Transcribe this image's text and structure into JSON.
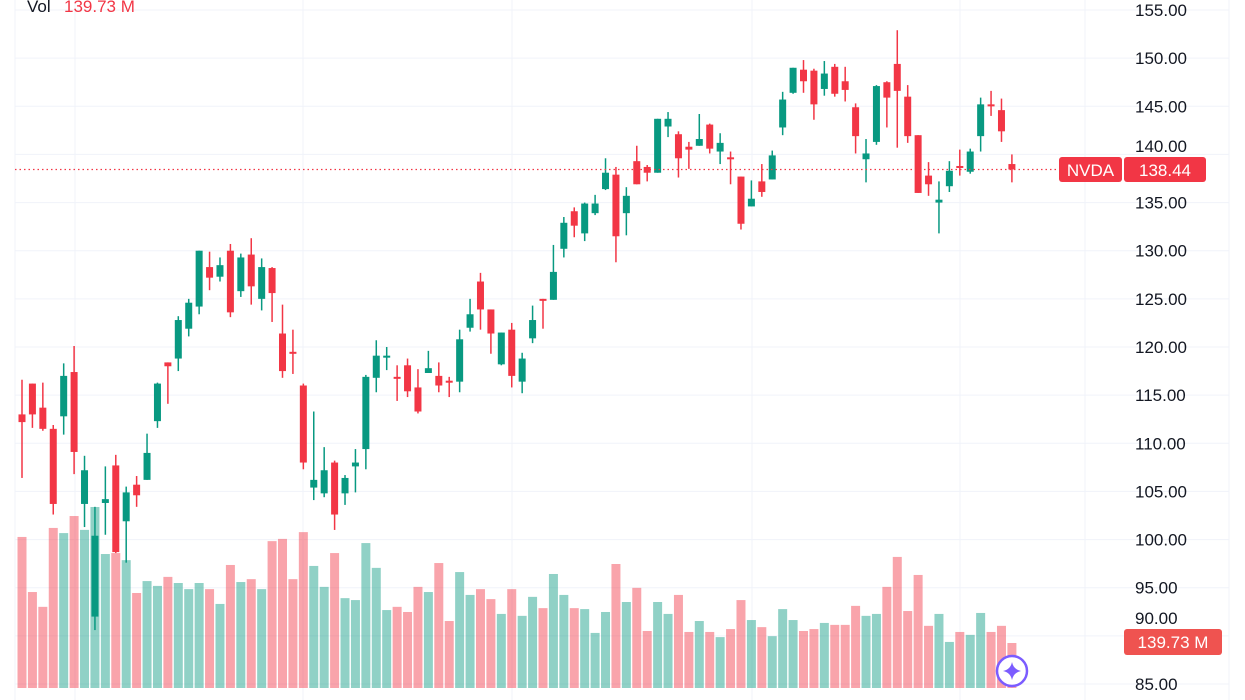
{
  "legend": {
    "vol_label": "Vol",
    "vol_value": "139.73 M"
  },
  "price_tag": {
    "symbol": "NVDA",
    "price": "138.44"
  },
  "volume_tag": "139.73 M",
  "assistant_icon": "sparkle-icon",
  "colors": {
    "up": "#089981",
    "down": "#f23645",
    "accent": "#7b5cff"
  },
  "chart_data": {
    "type": "candlestick",
    "symbol": "NVDA",
    "last_price": 138.44,
    "last_volume_millions": 139.73,
    "ylim": [
      85,
      155
    ],
    "y_ticks": [
      "155.00",
      "150.00",
      "145.00",
      "140.00",
      "135.00",
      "130.00",
      "125.00",
      "120.00",
      "115.00",
      "110.00",
      "105.00",
      "100.00",
      "95.00",
      "90.00",
      "85.00"
    ],
    "grid": true,
    "ohlc_fields": [
      "open",
      "high",
      "low",
      "close"
    ],
    "ohlc": [
      [
        113.0,
        116.6,
        106.4,
        112.2
      ],
      [
        116.2,
        116.2,
        111.6,
        113.0
      ],
      [
        113.7,
        116.3,
        111.3,
        111.5
      ],
      [
        111.5,
        111.9,
        102.6,
        103.7
      ],
      [
        112.8,
        118.3,
        110.9,
        117.0
      ],
      [
        117.4,
        120.1,
        106.8,
        109.1
      ],
      [
        103.7,
        108.7,
        101.3,
        107.2
      ],
      [
        92.0,
        103.4,
        90.6,
        100.4
      ],
      [
        103.8,
        107.6,
        100.5,
        104.2
      ],
      [
        107.7,
        108.8,
        98.6,
        98.7
      ],
      [
        101.9,
        105.5,
        97.6,
        104.9
      ],
      [
        105.7,
        106.6,
        103.4,
        104.6
      ],
      [
        106.2,
        111.0,
        106.2,
        109.0
      ],
      [
        112.3,
        116.3,
        111.6,
        116.2
      ],
      [
        118.4,
        118.4,
        114.1,
        118.0
      ],
      [
        118.8,
        123.2,
        117.5,
        122.8
      ],
      [
        121.9,
        125.0,
        121.1,
        124.6
      ],
      [
        124.2,
        130.0,
        123.4,
        130.0
      ],
      [
        128.3,
        129.9,
        125.9,
        127.2
      ],
      [
        127.3,
        129.3,
        126.8,
        128.5
      ],
      [
        130.0,
        130.7,
        123.1,
        123.6
      ],
      [
        125.8,
        129.7,
        125.2,
        129.3
      ],
      [
        129.6,
        131.3,
        124.4,
        126.3
      ],
      [
        125.0,
        129.2,
        123.8,
        128.3
      ],
      [
        128.2,
        128.3,
        122.6,
        125.6
      ],
      [
        121.4,
        124.4,
        116.8,
        117.5
      ],
      [
        119.5,
        121.8,
        117.2,
        119.3
      ],
      [
        116.0,
        116.2,
        107.3,
        108.0
      ],
      [
        105.4,
        113.3,
        104.1,
        106.2
      ],
      [
        104.8,
        109.6,
        104.4,
        107.2
      ],
      [
        108.0,
        108.2,
        101.0,
        102.6
      ],
      [
        104.8,
        106.7,
        103.6,
        106.4
      ],
      [
        107.6,
        109.4,
        104.9,
        108.0
      ],
      [
        109.4,
        117.1,
        107.3,
        116.9
      ],
      [
        116.8,
        120.7,
        115.3,
        119.1
      ],
      [
        119.0,
        120.0,
        117.6,
        119.1
      ],
      [
        116.9,
        118.1,
        114.4,
        116.7
      ],
      [
        118.1,
        118.8,
        114.8,
        115.4
      ],
      [
        115.8,
        117.7,
        113.1,
        113.3
      ],
      [
        117.3,
        119.6,
        117.3,
        117.8
      ],
      [
        117.0,
        118.4,
        115.3,
        116.0
      ],
      [
        116.5,
        116.9,
        114.8,
        116.3
      ],
      [
        116.4,
        121.8,
        115.3,
        120.8
      ],
      [
        122.0,
        125.0,
        121.6,
        123.4
      ],
      [
        126.8,
        127.7,
        121.8,
        123.9
      ],
      [
        123.9,
        123.9,
        119.3,
        121.4
      ],
      [
        118.2,
        121.5,
        118.1,
        121.5
      ],
      [
        121.8,
        122.5,
        115.8,
        117.0
      ],
      [
        116.4,
        119.4,
        115.2,
        118.8
      ],
      [
        120.9,
        124.3,
        120.4,
        122.8
      ],
      [
        125.0,
        125.0,
        121.9,
        124.9
      ],
      [
        124.9,
        130.6,
        124.9,
        127.8
      ],
      [
        130.2,
        133.5,
        129.3,
        132.9
      ],
      [
        134.1,
        134.5,
        131.4,
        132.6
      ],
      [
        131.8,
        135.0,
        131.0,
        134.9
      ],
      [
        133.9,
        135.8,
        133.7,
        134.9
      ],
      [
        136.4,
        139.6,
        136.3,
        138.1
      ],
      [
        137.9,
        138.7,
        128.8,
        131.5
      ],
      [
        133.9,
        136.6,
        131.6,
        135.7
      ],
      [
        139.3,
        140.9,
        136.9,
        136.9
      ],
      [
        138.7,
        138.9,
        137.2,
        138.1
      ],
      [
        138.1,
        143.7,
        138.1,
        143.7
      ],
      [
        142.9,
        144.4,
        141.8,
        143.7
      ],
      [
        142.1,
        142.4,
        137.6,
        139.6
      ],
      [
        140.8,
        141.3,
        138.5,
        140.5
      ],
      [
        140.9,
        144.2,
        140.9,
        141.6
      ],
      [
        143.1,
        143.2,
        140.1,
        140.6
      ],
      [
        140.3,
        142.2,
        139.0,
        141.2
      ],
      [
        139.7,
        140.3,
        136.9,
        139.5
      ],
      [
        137.7,
        137.7,
        132.2,
        132.8
      ],
      [
        134.6,
        137.3,
        134.6,
        135.4
      ],
      [
        137.2,
        139.0,
        135.6,
        136.1
      ],
      [
        137.4,
        140.4,
        137.4,
        139.9
      ],
      [
        142.8,
        146.5,
        142.0,
        145.7
      ],
      [
        146.4,
        149.0,
        146.3,
        149.0
      ],
      [
        148.8,
        149.8,
        146.4,
        147.6
      ],
      [
        148.7,
        148.9,
        143.6,
        145.2
      ],
      [
        146.8,
        149.7,
        146.1,
        148.4
      ],
      [
        149.1,
        149.4,
        146.0,
        146.3
      ],
      [
        147.6,
        149.1,
        145.5,
        146.7
      ],
      [
        144.9,
        145.3,
        140.1,
        141.9
      ],
      [
        139.5,
        141.6,
        137.1,
        140.1
      ],
      [
        141.3,
        147.2,
        141.0,
        147.1
      ],
      [
        147.5,
        147.6,
        142.8,
        145.9
      ],
      [
        149.4,
        152.9,
        140.7,
        146.6
      ],
      [
        146.0,
        147.2,
        141.2,
        141.9
      ],
      [
        142.0,
        142.0,
        136.0,
        136.0
      ],
      [
        137.8,
        139.2,
        135.7,
        136.9
      ],
      [
        135.0,
        137.2,
        131.8,
        135.3
      ],
      [
        136.7,
        139.3,
        136.1,
        138.3
      ],
      [
        138.8,
        140.5,
        137.8,
        138.7
      ],
      [
        138.2,
        140.6,
        138.0,
        140.3
      ],
      [
        141.9,
        145.9,
        140.3,
        145.2
      ],
      [
        145.2,
        146.6,
        144.0,
        145.0
      ],
      [
        144.6,
        145.8,
        141.3,
        142.4
      ],
      [
        139.0,
        140.0,
        137.1,
        138.44
      ]
    ],
    "volume_millions": [
      469,
      298,
      252,
      497,
      481,
      534,
      491,
      562,
      416,
      419,
      397,
      295,
      332,
      317,
      345,
      326,
      307,
      326,
      307,
      261,
      382,
      329,
      338,
      307,
      456,
      463,
      338,
      484,
      379,
      314,
      419,
      279,
      273,
      450,
      373,
      242,
      252,
      236,
      314,
      298,
      388,
      208,
      360,
      289,
      307,
      276,
      230,
      307,
      224,
      283,
      248,
      354,
      289,
      248,
      245,
      171,
      236,
      385,
      267,
      311,
      177,
      267,
      230,
      289,
      174,
      208,
      174,
      158,
      183,
      273,
      211,
      189,
      161,
      245,
      211,
      177,
      183,
      202,
      196,
      196,
      255,
      224,
      230,
      314,
      407,
      239,
      351,
      193,
      230,
      143,
      174,
      165,
      233,
      174,
      193,
      139.73
    ]
  }
}
